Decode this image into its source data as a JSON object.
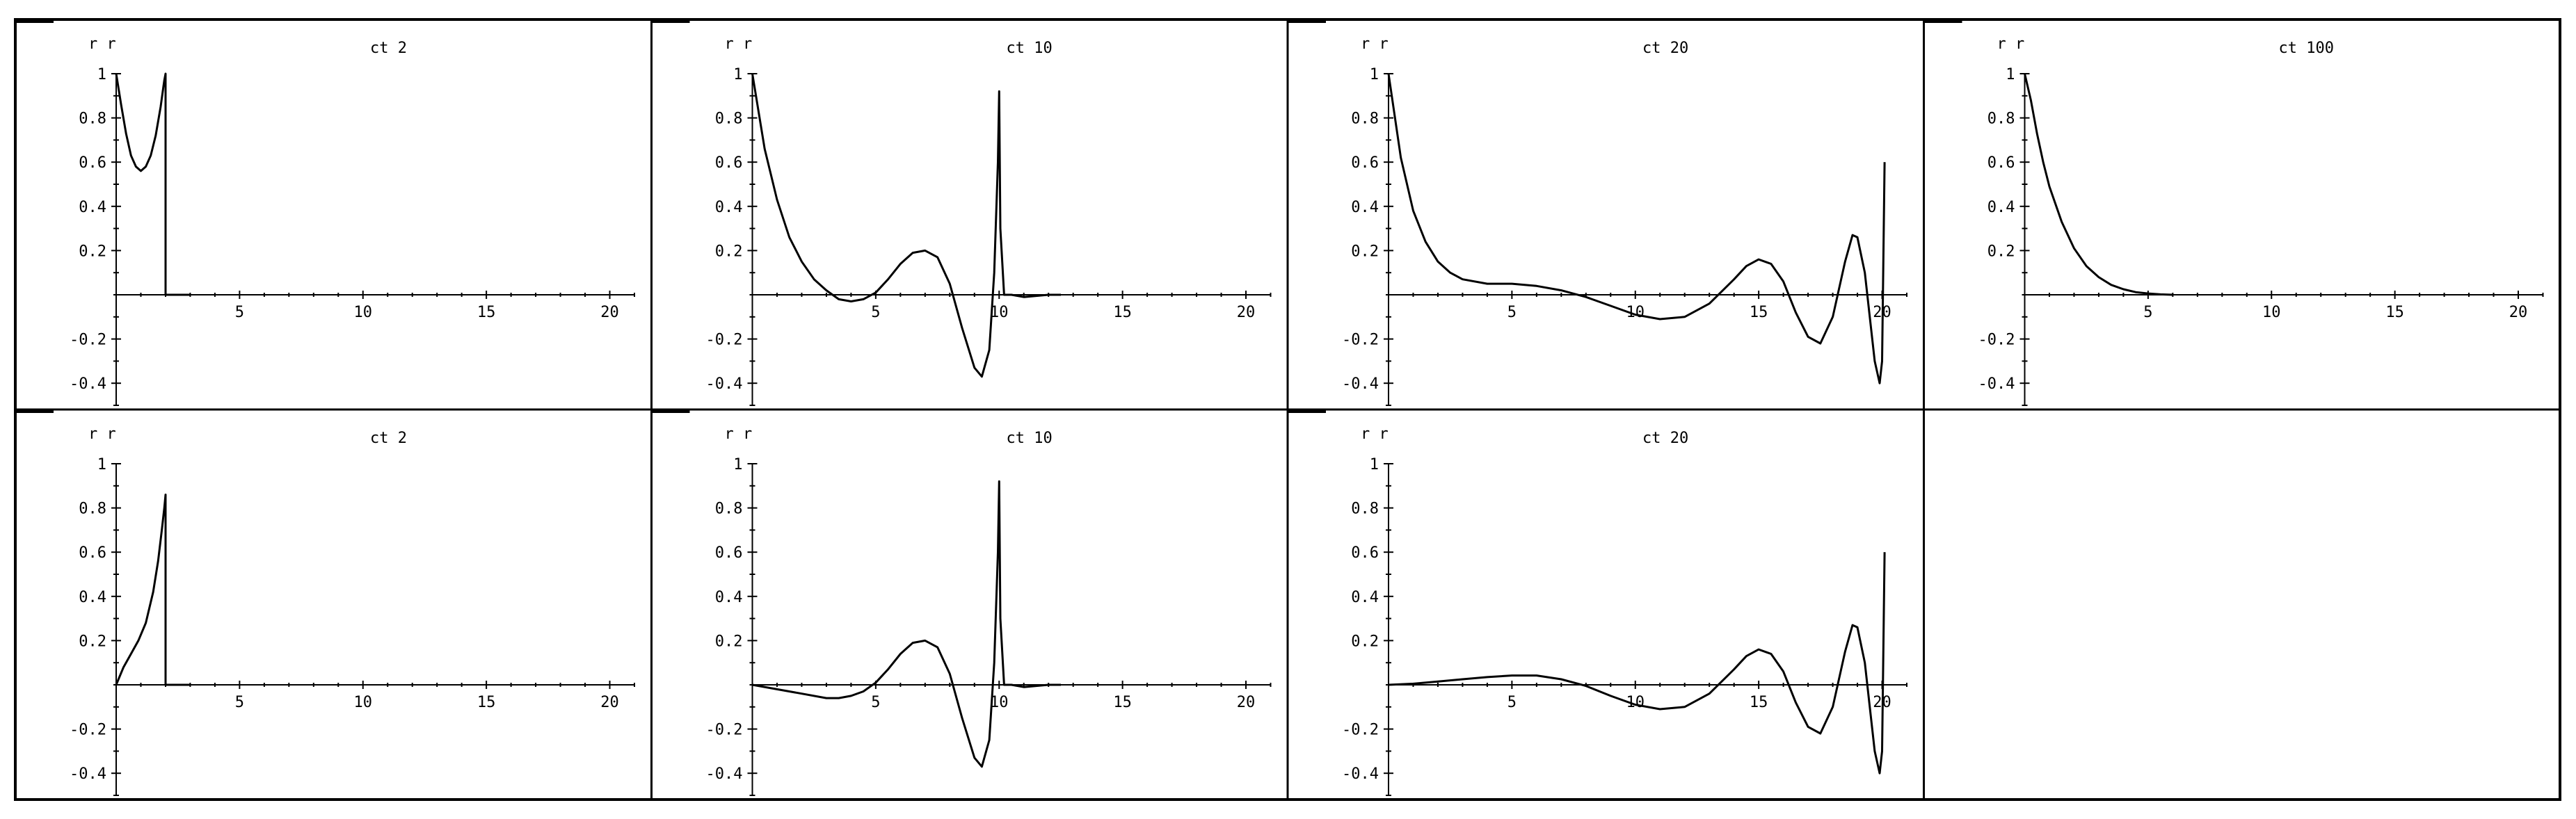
{
  "chart_data": [
    {
      "type": "line",
      "title": "ct 2",
      "corner_label": "r r",
      "xlim": [
        0,
        21
      ],
      "ylim": [
        -0.5,
        1.0
      ],
      "x_ticks": [
        5,
        10,
        15,
        20
      ],
      "x_tick_labels": [
        "5",
        "10",
        "15",
        "20"
      ],
      "y_ticks": [
        -0.4,
        -0.2,
        0.2,
        0.4,
        0.6,
        0.8,
        1
      ],
      "y_tick_labels": [
        "-0.4",
        "-0.2",
        "0.2",
        "0.4",
        "0.6",
        "0.8",
        "1"
      ],
      "grid": false,
      "series": [
        {
          "x": [
            0,
            0.2,
            0.4,
            0.6,
            0.8,
            1.0,
            1.2,
            1.4,
            1.6,
            1.8,
            1.9,
            1.95,
            2.0,
            2.0,
            2.0,
            2.5,
            3.0
          ],
          "y": [
            1.0,
            0.86,
            0.73,
            0.63,
            0.58,
            0.56,
            0.58,
            0.63,
            0.72,
            0.85,
            0.93,
            0.97,
            1.0,
            0.5,
            0.0,
            0.0,
            0.0
          ]
        }
      ]
    },
    {
      "type": "line",
      "title": "ct 10",
      "corner_label": "r r",
      "xlim": [
        0,
        21
      ],
      "ylim": [
        -0.5,
        1.0
      ],
      "x_ticks": [
        5,
        10,
        15,
        20
      ],
      "x_tick_labels": [
        "5",
        "10",
        "15",
        "20"
      ],
      "y_ticks": [
        -0.4,
        -0.2,
        0.2,
        0.4,
        0.6,
        0.8,
        1
      ],
      "y_tick_labels": [
        "-0.4",
        "-0.2",
        "0.2",
        "0.4",
        "0.6",
        "0.8",
        "1"
      ],
      "grid": false,
      "series": [
        {
          "x": [
            0,
            0.5,
            1.0,
            1.5,
            2.0,
            2.5,
            3.0,
            3.5,
            4.0,
            4.5,
            5.0,
            5.5,
            6.0,
            6.5,
            7.0,
            7.5,
            8.0,
            8.5,
            9.0,
            9.3,
            9.6,
            9.8,
            9.95,
            10.0,
            10.05,
            10.2,
            10.5,
            11.0,
            12.0,
            12.5
          ],
          "y": [
            1.0,
            0.66,
            0.43,
            0.26,
            0.15,
            0.07,
            0.02,
            -0.02,
            -0.03,
            -0.02,
            0.01,
            0.07,
            0.14,
            0.19,
            0.2,
            0.17,
            0.05,
            -0.15,
            -0.33,
            -0.37,
            -0.25,
            0.1,
            0.6,
            0.92,
            0.3,
            0.0,
            0.0,
            -0.01,
            0.0,
            0.0
          ]
        }
      ]
    },
    {
      "type": "line",
      "title": "ct 20",
      "corner_label": "r r",
      "xlim": [
        0,
        21
      ],
      "ylim": [
        -0.5,
        1.0
      ],
      "x_ticks": [
        5,
        10,
        15,
        20
      ],
      "x_tick_labels": [
        "5",
        "10",
        "15",
        "20"
      ],
      "y_ticks": [
        -0.4,
        -0.2,
        0.2,
        0.4,
        0.6,
        0.8,
        1
      ],
      "y_tick_labels": [
        "-0.4",
        "-0.2",
        "0.2",
        "0.4",
        "0.6",
        "0.8",
        "1"
      ],
      "grid": false,
      "series": [
        {
          "x": [
            0,
            0.5,
            1.0,
            1.5,
            2.0,
            2.5,
            3.0,
            4.0,
            5.0,
            6.0,
            7.0,
            8.0,
            9.0,
            10.0,
            11.0,
            12.0,
            13.0,
            14.0,
            14.5,
            15.0,
            15.5,
            16.0,
            16.5,
            17.0,
            17.5,
            18.0,
            18.5,
            18.8,
            19.0,
            19.3,
            19.5,
            19.7,
            19.9,
            20.0,
            20.1
          ],
          "y": [
            1.0,
            0.62,
            0.38,
            0.24,
            0.15,
            0.1,
            0.07,
            0.05,
            0.05,
            0.04,
            0.02,
            -0.01,
            -0.05,
            -0.09,
            -0.11,
            -0.1,
            -0.04,
            0.07,
            0.13,
            0.16,
            0.14,
            0.06,
            -0.08,
            -0.19,
            -0.22,
            -0.1,
            0.15,
            0.27,
            0.26,
            0.1,
            -0.1,
            -0.3,
            -0.4,
            -0.3,
            0.6
          ]
        }
      ]
    },
    {
      "type": "line",
      "title": "ct 100",
      "corner_label": "r r",
      "xlim": [
        0,
        21
      ],
      "ylim": [
        -0.5,
        1.0
      ],
      "x_ticks": [
        5,
        10,
        15,
        20
      ],
      "x_tick_labels": [
        "5",
        "10",
        "15",
        "20"
      ],
      "y_ticks": [
        -0.4,
        -0.2,
        0.2,
        0.4,
        0.6,
        0.8,
        1
      ],
      "y_tick_labels": [
        "-0.4",
        "-0.2",
        "0.2",
        "0.4",
        "0.6",
        "0.8",
        "1"
      ],
      "grid": false,
      "series": [
        {
          "x": [
            0,
            0.25,
            0.5,
            0.75,
            1.0,
            1.5,
            2.0,
            2.5,
            3.0,
            3.5,
            4.0,
            4.5,
            5.0,
            5.5,
            6.0
          ],
          "y": [
            1.0,
            0.88,
            0.73,
            0.6,
            0.49,
            0.33,
            0.21,
            0.13,
            0.08,
            0.045,
            0.025,
            0.012,
            0.006,
            0.002,
            0.0
          ]
        }
      ]
    },
    {
      "type": "line",
      "title": "ct 2",
      "corner_label": "r r",
      "xlim": [
        0,
        21
      ],
      "ylim": [
        -0.5,
        1.0
      ],
      "x_ticks": [
        5,
        10,
        15,
        20
      ],
      "x_tick_labels": [
        "5",
        "10",
        "15",
        "20"
      ],
      "y_ticks": [
        -0.4,
        -0.2,
        0.2,
        0.4,
        0.6,
        0.8,
        1
      ],
      "y_tick_labels": [
        "-0.4",
        "-0.2",
        "0.2",
        "0.4",
        "0.6",
        "0.8",
        "1"
      ],
      "grid": false,
      "series": [
        {
          "x": [
            0,
            0.3,
            0.6,
            0.9,
            1.2,
            1.5,
            1.7,
            1.85,
            1.95,
            2.0,
            2.0,
            2.0,
            2.5,
            3.0
          ],
          "y": [
            0.0,
            0.08,
            0.14,
            0.2,
            0.28,
            0.42,
            0.56,
            0.7,
            0.8,
            0.86,
            0.4,
            0.0,
            0.0,
            0.0
          ]
        }
      ]
    },
    {
      "type": "line",
      "title": "ct 10",
      "corner_label": "r r",
      "xlim": [
        0,
        21
      ],
      "ylim": [
        -0.5,
        1.0
      ],
      "x_ticks": [
        5,
        10,
        15,
        20
      ],
      "x_tick_labels": [
        "5",
        "10",
        "15",
        "20"
      ],
      "y_ticks": [
        -0.4,
        -0.2,
        0.2,
        0.4,
        0.6,
        0.8,
        1
      ],
      "y_tick_labels": [
        "-0.4",
        "-0.2",
        "0.2",
        "0.4",
        "0.6",
        "0.8",
        "1"
      ],
      "grid": false,
      "series": [
        {
          "x": [
            0,
            1.0,
            2.0,
            3.0,
            3.5,
            4.0,
            4.5,
            5.0,
            5.5,
            6.0,
            6.5,
            7.0,
            7.5,
            8.0,
            8.5,
            9.0,
            9.3,
            9.6,
            9.8,
            9.95,
            10.0,
            10.05,
            10.2,
            10.5,
            11.0,
            12.0,
            12.5
          ],
          "y": [
            0.0,
            -0.02,
            -0.04,
            -0.06,
            -0.06,
            -0.05,
            -0.03,
            0.01,
            0.07,
            0.14,
            0.19,
            0.2,
            0.17,
            0.05,
            -0.15,
            -0.33,
            -0.37,
            -0.25,
            0.1,
            0.6,
            0.92,
            0.3,
            0.0,
            0.0,
            -0.01,
            0.0,
            0.0
          ]
        }
      ]
    },
    {
      "type": "line",
      "title": "ct 20",
      "corner_label": "r r",
      "xlim": [
        0,
        21
      ],
      "ylim": [
        -0.5,
        1.0
      ],
      "x_ticks": [
        5,
        10,
        15,
        20
      ],
      "x_tick_labels": [
        "5",
        "10",
        "15",
        "20"
      ],
      "y_ticks": [
        -0.4,
        -0.2,
        0.2,
        0.4,
        0.6,
        0.8,
        1
      ],
      "y_tick_labels": [
        "-0.4",
        "-0.2",
        "0.2",
        "0.4",
        "0.6",
        "0.8",
        "1"
      ],
      "grid": false,
      "series": [
        {
          "x": [
            0,
            1.0,
            2.0,
            3.0,
            4.0,
            5.0,
            6.0,
            7.0,
            8.0,
            9.0,
            10.0,
            11.0,
            12.0,
            13.0,
            14.0,
            14.5,
            15.0,
            15.5,
            16.0,
            16.5,
            17.0,
            17.5,
            18.0,
            18.5,
            18.8,
            19.0,
            19.3,
            19.5,
            19.7,
            19.9,
            20.0,
            20.1
          ],
          "y": [
            0.0,
            0.005,
            0.015,
            0.025,
            0.035,
            0.042,
            0.042,
            0.025,
            -0.005,
            -0.05,
            -0.09,
            -0.11,
            -0.1,
            -0.04,
            0.07,
            0.13,
            0.16,
            0.14,
            0.06,
            -0.08,
            -0.19,
            -0.22,
            -0.1,
            0.15,
            0.27,
            0.26,
            0.1,
            -0.1,
            -0.3,
            -0.4,
            -0.3,
            0.6
          ]
        }
      ]
    }
  ]
}
